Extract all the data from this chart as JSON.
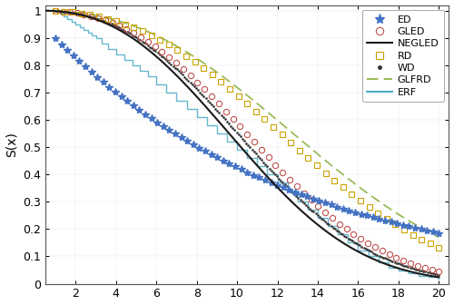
{
  "title": "",
  "xlabel": "",
  "ylabel": "S(x)",
  "xlim": [
    0.5,
    20.5
  ],
  "ylim": [
    0,
    1.02
  ],
  "xticks": [
    2,
    4,
    6,
    8,
    10,
    12,
    14,
    16,
    18,
    20
  ],
  "yticks": [
    0,
    0.1,
    0.2,
    0.3,
    0.4,
    0.5,
    0.6,
    0.7,
    0.8,
    0.9,
    1.0
  ],
  "ed_color": "#4472C4",
  "gled_color": "#C0504D",
  "negled_color": "#1A1A1A",
  "rd_color": "#CCA300",
  "wd_color": "#333333",
  "glfrd_color": "#9BBB59",
  "erf_color": "#4BACC6",
  "legend_loc": "upper right",
  "background_color": "#ffffff",
  "erf_x": [
    1.0,
    1.2,
    1.4,
    1.6,
    1.8,
    2.0,
    2.2,
    2.4,
    2.6,
    2.8,
    3.0,
    3.3,
    3.6,
    4.0,
    4.4,
    4.8,
    5.2,
    5.6,
    6.0,
    6.5,
    7.0,
    7.5,
    8.0,
    8.5,
    9.0,
    9.5,
    10.0,
    10.5,
    11.0,
    11.5,
    12.0,
    12.5,
    13.0,
    13.5,
    14.0,
    14.5,
    15.0,
    15.5,
    16.0,
    16.5,
    17.0,
    17.5,
    18.0,
    18.5,
    19.0,
    19.5,
    20.0
  ],
  "erf_s": [
    1.0,
    0.99,
    0.98,
    0.97,
    0.96,
    0.95,
    0.94,
    0.93,
    0.92,
    0.91,
    0.9,
    0.88,
    0.86,
    0.84,
    0.82,
    0.8,
    0.78,
    0.76,
    0.73,
    0.7,
    0.67,
    0.64,
    0.61,
    0.58,
    0.55,
    0.52,
    0.49,
    0.46,
    0.43,
    0.4,
    0.37,
    0.34,
    0.3,
    0.27,
    0.24,
    0.21,
    0.18,
    0.15,
    0.12,
    0.1,
    0.08,
    0.06,
    0.05,
    0.04,
    0.03,
    0.025,
    0.02
  ]
}
